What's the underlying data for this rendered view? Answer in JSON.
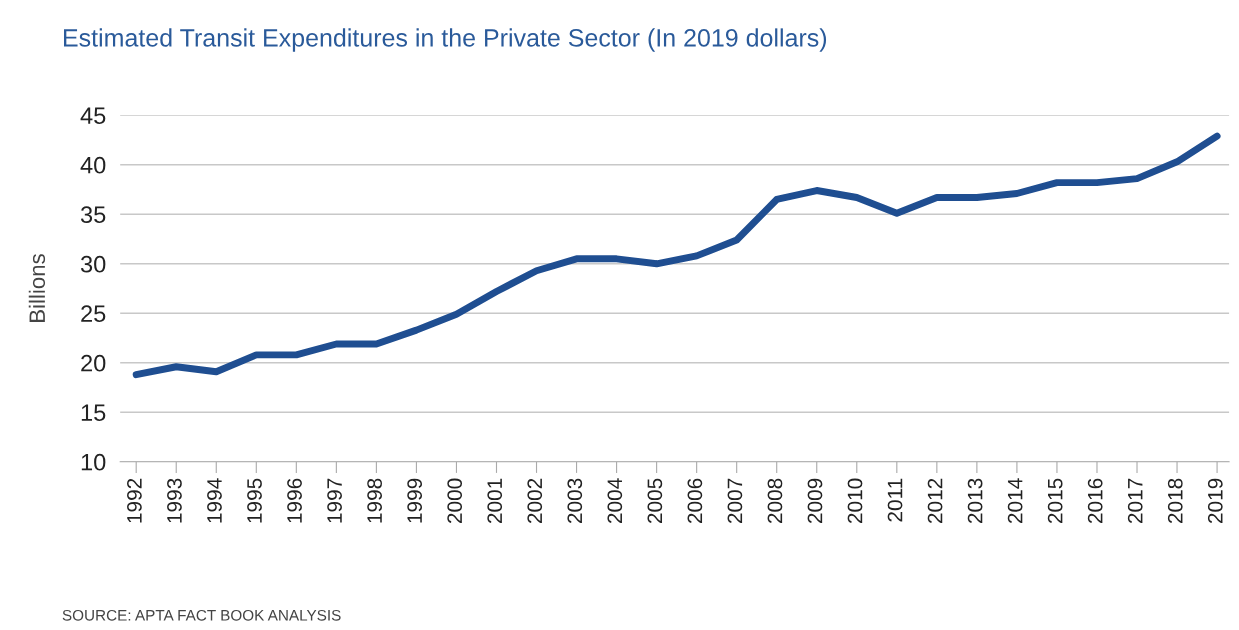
{
  "chart_data": {
    "type": "line",
    "title": "Estimated Transit Expenditures in the Private Sector (In 2019 dollars)",
    "ylabel": "Billions",
    "categories": [
      "1992",
      "1993",
      "1994",
      "1995",
      "1996",
      "1997",
      "1998",
      "1999",
      "2000",
      "2001",
      "2002",
      "2003",
      "2004",
      "2005",
      "2006",
      "2007",
      "2008",
      "2009",
      "2010",
      "2011",
      "2012",
      "2013",
      "2014",
      "2015",
      "2016",
      "2017",
      "2018",
      "2019"
    ],
    "series": [
      {
        "color": "#1f4e91",
        "values": [
          18.8,
          19.6,
          19.1,
          20.8,
          20.8,
          21.9,
          21.9,
          23.3,
          24.9,
          27.2,
          29.3,
          30.5,
          30.5,
          30.0,
          30.8,
          32.4,
          36.5,
          37.4,
          36.7,
          35.1,
          36.7,
          36.7,
          37.1,
          38.2,
          38.2,
          38.6,
          40.3,
          42.9
        ]
      }
    ],
    "ylim": [
      10,
      45
    ],
    "yticks": [
      10,
      15,
      20,
      25,
      30,
      35,
      40,
      45
    ],
    "grid": "y",
    "legend": false,
    "marker": "none",
    "line_style": "solid",
    "annotations": [
      "SOURCE: APTA FACT BOOK ANALYSIS"
    ]
  }
}
